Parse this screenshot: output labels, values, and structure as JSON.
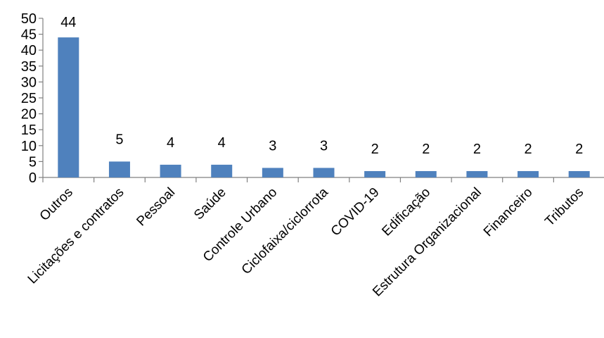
{
  "chart_data": {
    "type": "bar",
    "title": "",
    "xlabel": "",
    "ylabel": "",
    "categories": [
      "Outros",
      "Licitações e contratos",
      "Pessoal",
      "Saúde",
      "Controle Urbano",
      "Ciclofaixa/ciclorrota",
      "COVID-19",
      "Edificação",
      "Estrutura Organizacional",
      "Financeiro",
      "Tributos"
    ],
    "values": [
      44,
      5,
      4,
      4,
      3,
      3,
      2,
      2,
      2,
      2,
      2
    ],
    "ylim": [
      0,
      50
    ],
    "yticks": [
      0,
      5,
      10,
      15,
      20,
      25,
      30,
      35,
      40,
      45,
      50
    ],
    "data_labels": true,
    "grid": false,
    "legend": "none",
    "colors": {
      "bar": "#4f81bd",
      "axis": "#808080",
      "text": "#000000"
    }
  }
}
